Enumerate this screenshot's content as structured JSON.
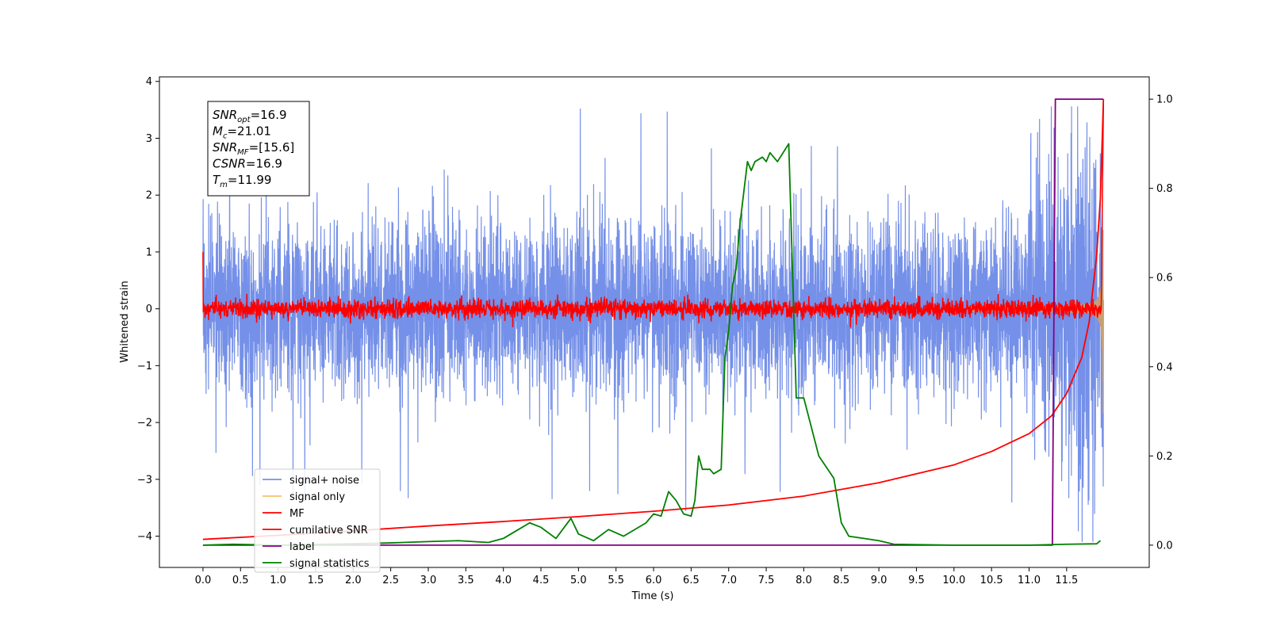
{
  "chart_data": {
    "type": "line",
    "xlabel": "Time (s)",
    "ylabel_left": "Whitened strain",
    "ylabel_right": "",
    "xlim": [
      -0.58,
      12.6
    ],
    "ylim_left": [
      -4.55,
      4.08
    ],
    "ylim_right": [
      -0.05,
      1.05
    ],
    "x_ticks": [
      "0.0",
      "0.5",
      "1.0",
      "1.5",
      "2.0",
      "2.5",
      "3.0",
      "3.5",
      "4.0",
      "4.5",
      "5.0",
      "5.5",
      "6.0",
      "6.5",
      "7.0",
      "7.5",
      "8.0",
      "8.5",
      "9.0",
      "9.5",
      "10.0",
      "10.5",
      "11.0",
      "11.5"
    ],
    "y_ticks_left": [
      "4",
      "3",
      "2",
      "1",
      "0",
      "−1",
      "−2",
      "−3",
      "−4"
    ],
    "y_ticks_right": [
      "1.0",
      "0.8",
      "0.6",
      "0.4",
      "0.2",
      "0.0"
    ],
    "grid": false,
    "legend_placement": "lower-left",
    "info_box": {
      "placement": "top-left",
      "lines": [
        {
          "sym": "SNR",
          "sub": "opt",
          "val": "=16.9"
        },
        {
          "sym": "M",
          "sub": "c",
          "val": "=21.01"
        },
        {
          "sym": "SNR",
          "sub": "MF",
          "val": "=[15.6]"
        },
        {
          "sym": "CSNR",
          "sub": "",
          "val": "=16.9"
        },
        {
          "sym": "T",
          "sub": "m",
          "val": "=11.99"
        }
      ]
    },
    "series": [
      {
        "name": "signal+ noise",
        "color": "#7590e8",
        "axis": "left",
        "style": "noise",
        "sigma": 0.75,
        "envelope_max": 3.5,
        "extreme_max": 3.56,
        "extreme_min": -4.1
      },
      {
        "name": "signal only",
        "color": "#f4c36a",
        "axis": "left",
        "style": "chirp",
        "t_merge": 11.99,
        "amp_max": 3.6
      },
      {
        "name": "MF",
        "color": "#ff0000",
        "axis": "left",
        "style": "mf",
        "start_value": 1.0,
        "noise_amp": 0.08,
        "spike_max": 3.6
      },
      {
        "name": "cumilative SNR",
        "color": "#ff0000",
        "axis": "right",
        "x": [
          0.0,
          1.0,
          2.0,
          3.0,
          4.0,
          5.0,
          6.0,
          7.0,
          8.0,
          9.0,
          10.0,
          10.5,
          11.0,
          11.3,
          11.5,
          11.7,
          11.8,
          11.9,
          11.95,
          11.99
        ],
        "y": [
          0.013,
          0.022,
          0.032,
          0.043,
          0.053,
          0.064,
          0.076,
          0.09,
          0.11,
          0.14,
          0.18,
          0.21,
          0.25,
          0.29,
          0.34,
          0.42,
          0.5,
          0.65,
          0.78,
          1.0
        ]
      },
      {
        "name": "label",
        "color": "#800080",
        "axis": "right",
        "x": [
          0.0,
          11.31,
          11.35,
          11.99
        ],
        "y": [
          0.0,
          0.0,
          1.0,
          1.0
        ]
      },
      {
        "name": "signal statistics",
        "color": "#008000",
        "axis": "right",
        "x": [
          0.0,
          0.4,
          1.0,
          2.0,
          2.5,
          3.0,
          3.4,
          3.8,
          4.0,
          4.2,
          4.35,
          4.5,
          4.7,
          4.9,
          5.0,
          5.2,
          5.4,
          5.6,
          5.7,
          5.9,
          6.0,
          6.1,
          6.2,
          6.3,
          6.4,
          6.5,
          6.55,
          6.6,
          6.65,
          6.75,
          6.8,
          6.9,
          6.95,
          7.0,
          7.05,
          7.1,
          7.15,
          7.25,
          7.3,
          7.35,
          7.45,
          7.5,
          7.55,
          7.65,
          7.8,
          7.9,
          8.0,
          8.2,
          8.4,
          8.5,
          8.6,
          8.8,
          9.0,
          9.2,
          10.0,
          11.0,
          11.5,
          11.9,
          11.95
        ],
        "y": [
          0.0,
          0.002,
          0.0,
          0.003,
          0.005,
          0.008,
          0.01,
          0.006,
          0.015,
          0.035,
          0.05,
          0.04,
          0.015,
          0.06,
          0.025,
          0.01,
          0.035,
          0.02,
          0.03,
          0.05,
          0.07,
          0.065,
          0.12,
          0.1,
          0.07,
          0.065,
          0.1,
          0.2,
          0.17,
          0.17,
          0.16,
          0.17,
          0.42,
          0.48,
          0.58,
          0.62,
          0.72,
          0.86,
          0.84,
          0.86,
          0.87,
          0.86,
          0.88,
          0.86,
          0.9,
          0.33,
          0.33,
          0.2,
          0.15,
          0.05,
          0.02,
          0.015,
          0.01,
          0.002,
          0.0,
          0.0,
          0.002,
          0.003,
          0.01
        ]
      }
    ]
  }
}
